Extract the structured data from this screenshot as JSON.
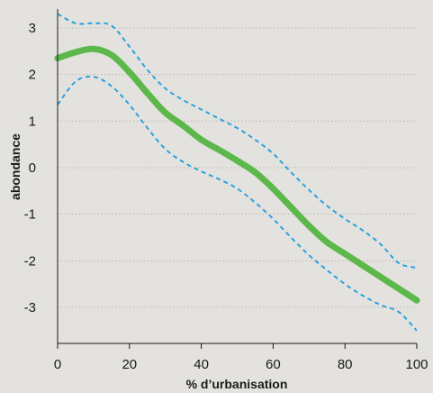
{
  "chart_data": {
    "type": "line",
    "title": "",
    "xlabel": "% d’urbanisation",
    "ylabel": "abondance",
    "xlim": [
      0,
      100
    ],
    "ylim": [
      -3.8,
      3.3
    ],
    "x_ticks": [
      0,
      20,
      40,
      60,
      80,
      100
    ],
    "y_ticks": [
      3,
      2,
      1,
      0,
      -1,
      -2,
      -3
    ],
    "grid": "horizontal-dotted",
    "legend": "none",
    "colors": {
      "mean": "#5cb84a",
      "bounds": "#2aa3dc",
      "grid": "#b9b7b3",
      "axis": "#1a1a1a"
    },
    "series": [
      {
        "role": "mean",
        "x": [
          0,
          5,
          10,
          15,
          20,
          25,
          30,
          35,
          40,
          45,
          50,
          55,
          60,
          65,
          70,
          75,
          80,
          85,
          90,
          95,
          100
        ],
        "y": [
          2.35,
          2.48,
          2.55,
          2.42,
          2.05,
          1.6,
          1.18,
          0.9,
          0.6,
          0.38,
          0.15,
          -0.1,
          -0.45,
          -0.85,
          -1.25,
          -1.6,
          -1.85,
          -2.1,
          -2.35,
          -2.6,
          -2.85
        ]
      },
      {
        "role": "upper-bound",
        "x": [
          0,
          5,
          10,
          15,
          20,
          25,
          30,
          35,
          40,
          45,
          50,
          55,
          60,
          65,
          70,
          75,
          80,
          85,
          90,
          95,
          100
        ],
        "y": [
          3.3,
          3.1,
          3.1,
          3.05,
          2.6,
          2.1,
          1.7,
          1.45,
          1.25,
          1.05,
          0.85,
          0.6,
          0.3,
          -0.1,
          -0.48,
          -0.82,
          -1.1,
          -1.35,
          -1.65,
          -2.05,
          -2.15
        ]
      },
      {
        "role": "lower-bound",
        "x": [
          0,
          5,
          10,
          15,
          20,
          25,
          30,
          35,
          40,
          45,
          50,
          55,
          60,
          65,
          70,
          75,
          80,
          85,
          90,
          95,
          100
        ],
        "y": [
          1.35,
          1.85,
          1.95,
          1.75,
          1.35,
          0.85,
          0.4,
          0.12,
          -0.08,
          -0.25,
          -0.45,
          -0.75,
          -1.1,
          -1.5,
          -1.88,
          -2.2,
          -2.5,
          -2.75,
          -2.95,
          -3.1,
          -3.5
        ]
      }
    ]
  }
}
